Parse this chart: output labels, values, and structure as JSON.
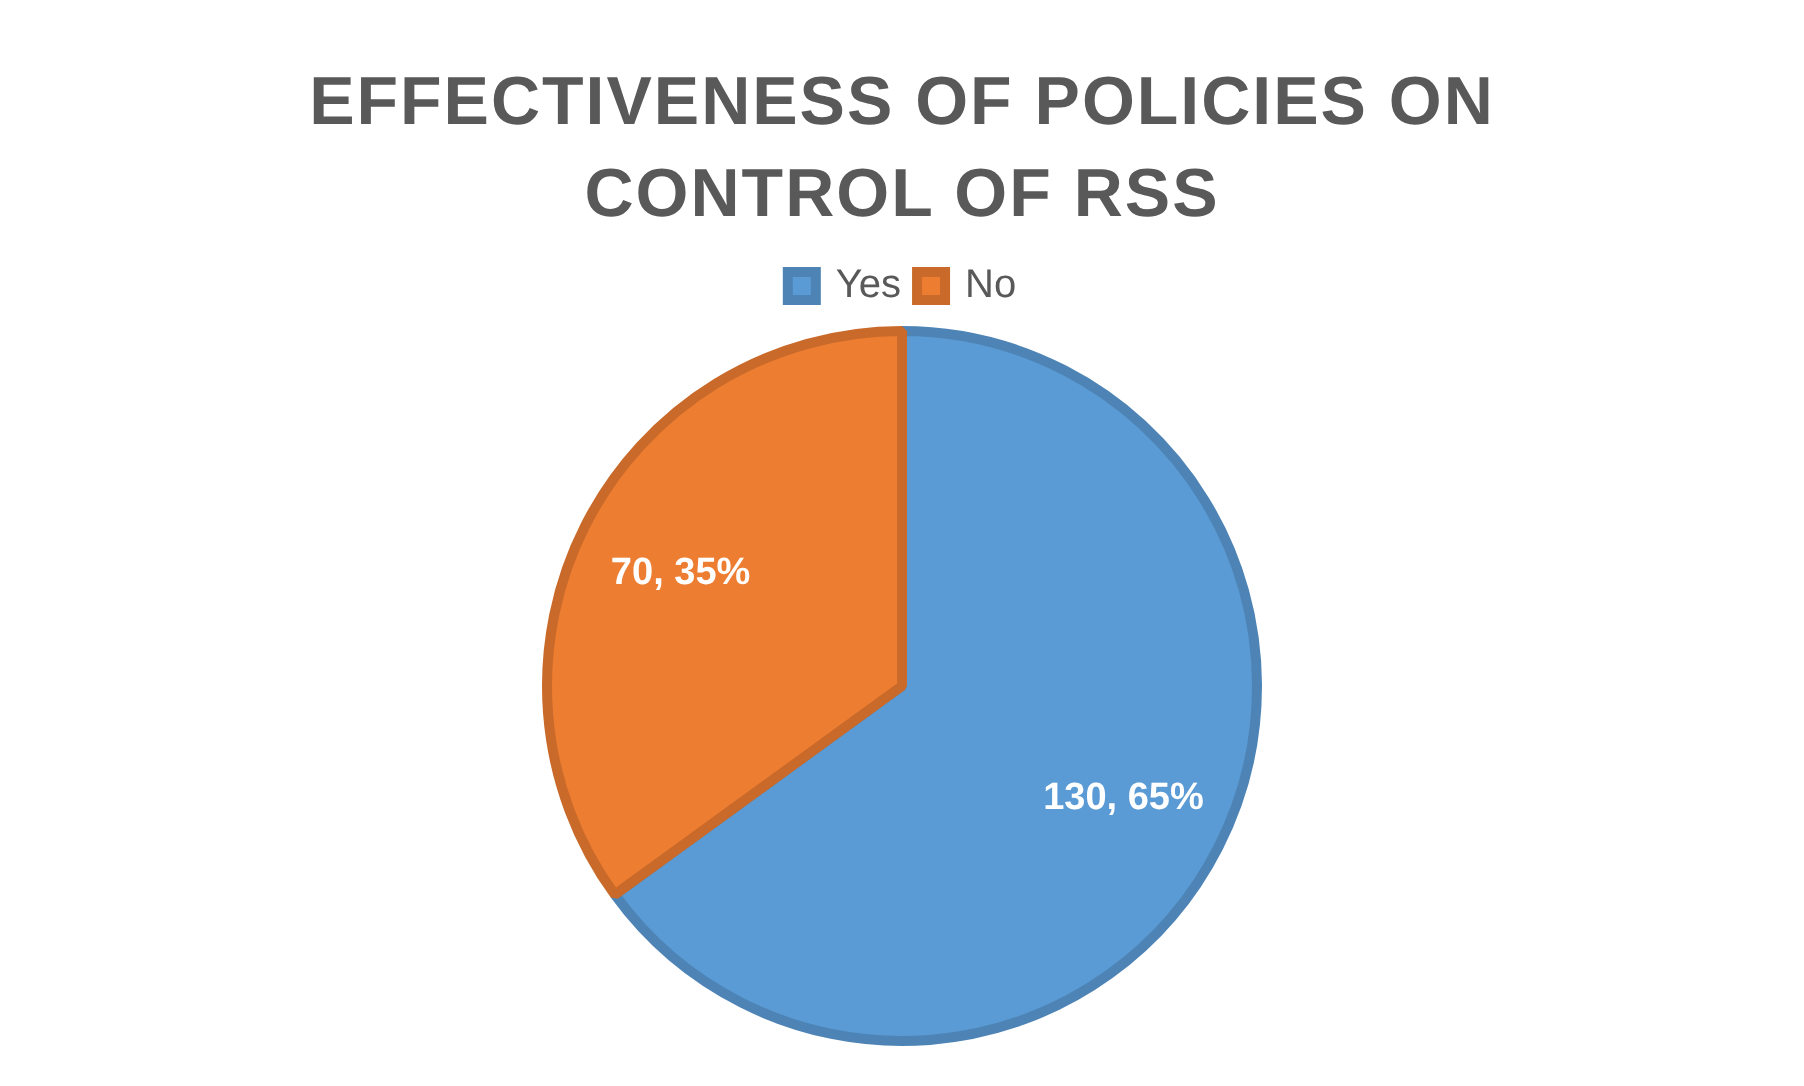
{
  "chart_data": {
    "type": "pie",
    "title": "EFFECTIVENESS OF POLICIES ON CONTROL OF RSS",
    "categories": [
      "Yes",
      "No"
    ],
    "values": [
      130,
      70
    ],
    "colors": [
      "#5b9bd5",
      "#ed7d31"
    ],
    "value_labels": [
      "130, 65%",
      "70, 35%"
    ],
    "legend": "top"
  }
}
